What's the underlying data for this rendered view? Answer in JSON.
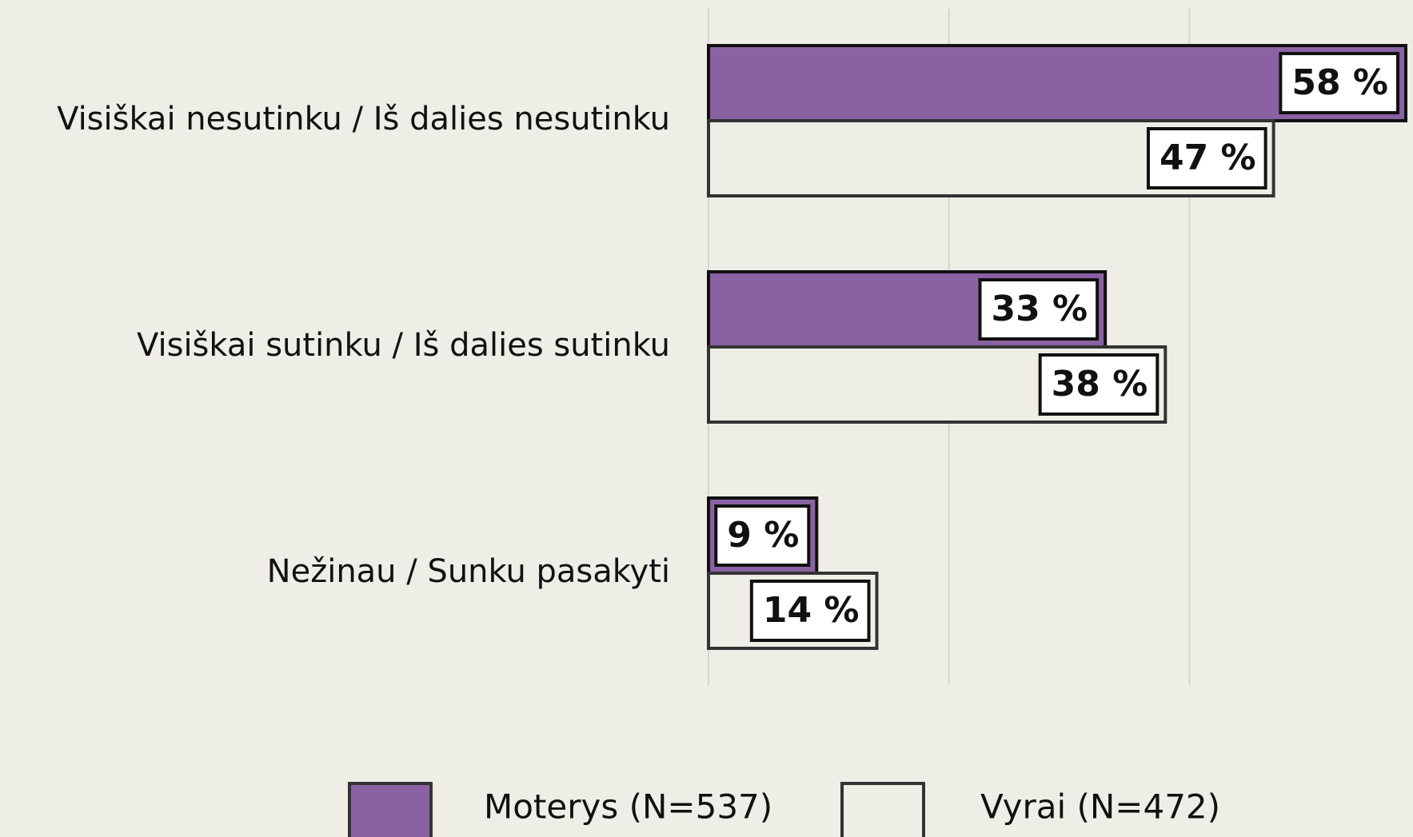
{
  "chart_data": {
    "type": "bar",
    "orientation": "horizontal",
    "categories": [
      "Visiškai nesutinku / Iš dalies nesutinku",
      "Visiškai sutinku / Iš dalies sutinku",
      "Nežinau / Sunku pasakyti"
    ],
    "series": [
      {
        "name": "Moterys (N=537)",
        "color": "#8a62a3",
        "values": [
          58,
          33,
          9
        ],
        "value_labels": [
          "58 %",
          "33 %",
          "9 %"
        ]
      },
      {
        "name": "Vyrai (N=472)",
        "color": "#eeede6",
        "values": [
          47,
          38,
          14
        ],
        "value_labels": [
          "47 %",
          "38 %",
          "14 %"
        ]
      }
    ],
    "xlim": [
      0,
      58
    ],
    "xticks": [
      0,
      20,
      40
    ],
    "grid": true,
    "legend": "bottom"
  }
}
